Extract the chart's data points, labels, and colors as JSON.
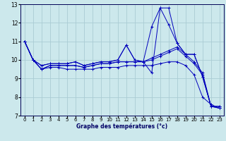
{
  "xlabel": "Graphe des températures (°c)",
  "ylabel": "",
  "background_color": "#cce8ec",
  "grid_color": "#aaccd4",
  "line_color": "#0000bb",
  "xlim": [
    -0.5,
    23.5
  ],
  "ylim": [
    7,
    13
  ],
  "yticks": [
    7,
    8,
    9,
    10,
    11,
    12,
    13
  ],
  "xticks": [
    0,
    1,
    2,
    3,
    4,
    5,
    6,
    7,
    8,
    9,
    10,
    11,
    12,
    13,
    14,
    15,
    16,
    17,
    18,
    19,
    20,
    21,
    22,
    23
  ],
  "series": [
    [
      11.0,
      10.0,
      9.7,
      9.8,
      9.8,
      9.8,
      9.9,
      9.7,
      9.8,
      9.9,
      9.9,
      10.0,
      10.8,
      10.0,
      9.9,
      9.3,
      12.8,
      12.8,
      10.9,
      10.3,
      10.3,
      9.1,
      7.5,
      7.5
    ],
    [
      11.0,
      10.0,
      9.7,
      9.8,
      9.8,
      9.8,
      9.9,
      9.7,
      9.8,
      9.9,
      9.9,
      10.0,
      10.8,
      10.0,
      9.9,
      11.8,
      12.8,
      11.9,
      10.9,
      10.3,
      10.3,
      9.1,
      7.5,
      7.5
    ],
    [
      11.0,
      10.0,
      9.5,
      9.7,
      9.7,
      9.7,
      9.7,
      9.6,
      9.7,
      9.8,
      9.8,
      9.9,
      9.9,
      9.9,
      9.9,
      10.1,
      10.3,
      10.5,
      10.7,
      10.3,
      9.9,
      9.3,
      7.5,
      7.4
    ],
    [
      11.0,
      10.0,
      9.5,
      9.7,
      9.7,
      9.7,
      9.7,
      9.6,
      9.7,
      9.8,
      9.8,
      9.9,
      9.9,
      9.9,
      9.9,
      10.0,
      10.2,
      10.4,
      10.6,
      10.2,
      9.8,
      9.2,
      7.5,
      7.4
    ],
    [
      11.0,
      10.0,
      9.5,
      9.6,
      9.6,
      9.5,
      9.5,
      9.5,
      9.5,
      9.6,
      9.6,
      9.6,
      9.7,
      9.7,
      9.7,
      9.7,
      9.8,
      9.9,
      9.9,
      9.7,
      9.2,
      8.0,
      7.6,
      7.4
    ]
  ],
  "xlabel_fontsize": 5.5,
  "ylabel_fontsize": 5.5,
  "tick_fontsize": 5.0
}
